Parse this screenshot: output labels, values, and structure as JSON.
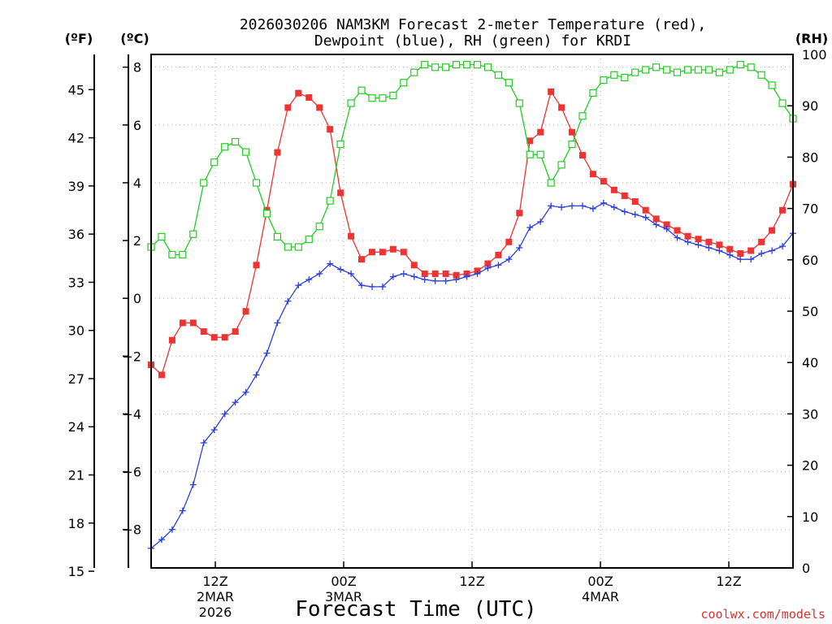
{
  "chart_data": {
    "type": "line",
    "title_line1": "2026030206 NAM3KM Forecast 2-meter Temperature (red),",
    "title_line2": "Dewpoint (blue), RH (green) for KRDI",
    "xlabel": "Forecast Time (UTC)",
    "credit": "coolwx.com/models",
    "units": {
      "left_outer": "(ºF)",
      "left_inner": "(ºC)",
      "right": "(RH)"
    },
    "x_range_hours": [
      0,
      60
    ],
    "x_ticks": [
      {
        "hour": 6,
        "label": "12Z",
        "sub1": "2MAR",
        "sub2": "2026"
      },
      {
        "hour": 18,
        "label": "00Z",
        "sub1": "3MAR",
        "sub2": ""
      },
      {
        "hour": 30,
        "label": "12Z",
        "sub1": "",
        "sub2": ""
      },
      {
        "hour": 42,
        "label": "00Z",
        "sub1": "4MAR",
        "sub2": ""
      },
      {
        "hour": 54,
        "label": "12Z",
        "sub1": "",
        "sub2": ""
      }
    ],
    "celsius_axis": {
      "range": [
        -9.33,
        8.44
      ],
      "ticks": [
        -8,
        -6,
        -4,
        -2,
        0,
        2,
        4,
        6,
        8
      ]
    },
    "fahrenheit_axis": {
      "ticks": [
        15,
        18,
        21,
        24,
        27,
        30,
        33,
        36,
        39,
        42,
        45
      ]
    },
    "rh_axis": {
      "range": [
        0,
        100
      ],
      "ticks": [
        0,
        10,
        20,
        30,
        40,
        50,
        60,
        70,
        80,
        90,
        100
      ]
    },
    "series": [
      {
        "name": "Temperature (red)",
        "axis": "celsius",
        "color": "#ee3333",
        "marker": "filled-square",
        "values": [
          -2.3,
          -2.65,
          -1.45,
          -0.85,
          -0.85,
          -1.15,
          -1.35,
          -1.35,
          -1.15,
          -0.45,
          1.15,
          3.05,
          5.05,
          6.6,
          7.1,
          6.95,
          6.6,
          5.85,
          3.65,
          2.15,
          1.35,
          1.6,
          1.6,
          1.7,
          1.6,
          1.15,
          0.85,
          0.85,
          0.85,
          0.8,
          0.85,
          0.95,
          1.2,
          1.5,
          1.95,
          2.95,
          5.45,
          5.75,
          7.15,
          6.6,
          5.75,
          4.95,
          4.3,
          4.05,
          3.75,
          3.55,
          3.35,
          3.05,
          2.75,
          2.55,
          2.35,
          2.15,
          2.05,
          1.95,
          1.85,
          1.7,
          1.55,
          1.65,
          1.95,
          2.35,
          3.05,
          3.95
        ]
      },
      {
        "name": "Dewpoint (blue)",
        "axis": "celsius",
        "color": "#2a3fdd",
        "marker": "plus",
        "values": [
          -8.65,
          -8.35,
          -8.0,
          -7.35,
          -6.45,
          -5.0,
          -4.55,
          -4.0,
          -3.6,
          -3.25,
          -2.65,
          -1.9,
          -0.85,
          -0.1,
          0.45,
          0.65,
          0.85,
          1.2,
          1.0,
          0.85,
          0.45,
          0.4,
          0.4,
          0.75,
          0.85,
          0.75,
          0.65,
          0.6,
          0.6,
          0.65,
          0.75,
          0.85,
          1.05,
          1.15,
          1.35,
          1.75,
          2.45,
          2.65,
          3.2,
          3.15,
          3.2,
          3.2,
          3.1,
          3.3,
          3.15,
          3.0,
          2.9,
          2.8,
          2.55,
          2.4,
          2.1,
          1.95,
          1.85,
          1.75,
          1.65,
          1.5,
          1.35,
          1.35,
          1.55,
          1.65,
          1.8,
          2.25
        ]
      },
      {
        "name": "RH (green)",
        "axis": "rh",
        "color": "#22cc22",
        "marker": "open-square",
        "values": [
          62.5,
          64.5,
          61.0,
          61.0,
          65.0,
          75.0,
          79.0,
          82.0,
          83.0,
          81.0,
          75.0,
          69.0,
          64.5,
          62.5,
          62.5,
          64.0,
          66.5,
          71.5,
          82.5,
          90.5,
          93.0,
          91.5,
          91.5,
          92.0,
          94.5,
          96.5,
          98.0,
          97.5,
          97.5,
          98.0,
          98.0,
          98.0,
          97.5,
          96.0,
          94.5,
          90.5,
          80.5,
          80.5,
          75.0,
          78.5,
          82.5,
          88.0,
          92.5,
          95.0,
          96.0,
          95.5,
          96.5,
          97.0,
          97.5,
          97.0,
          96.5,
          97.0,
          97.0,
          97.0,
          96.5,
          97.0,
          98.0,
          97.5,
          96.0,
          94.0,
          90.5,
          87.5
        ]
      }
    ]
  }
}
